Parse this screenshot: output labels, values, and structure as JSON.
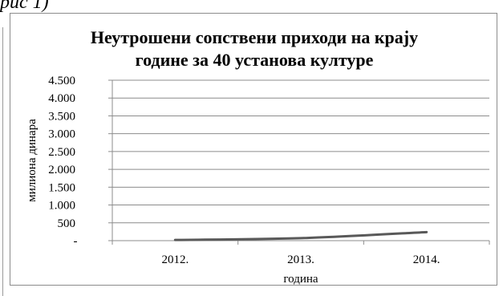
{
  "header_fragment": "рис 1)",
  "chart_data": {
    "type": "line",
    "title_lines": [
      "Неутрошени сопствени приходи на крају",
      "године за 40 установа културе"
    ],
    "xlabel": "година",
    "ylabel": "милиона динара",
    "categories": [
      "2012.",
      "2013.",
      "2014."
    ],
    "series": [
      {
        "values": [
          20,
          70,
          240
        ],
        "color": "#595959"
      }
    ],
    "ylim": [
      0,
      4500
    ],
    "yticks": [
      0,
      500,
      1000,
      1500,
      2000,
      2500,
      3000,
      3500,
      4000,
      4500
    ],
    "ytick_labels": [
      "-",
      "500",
      "1.000",
      "1.500",
      "2.000",
      "2.500",
      "3.000",
      "3.500",
      "4.000",
      "4.500"
    ],
    "grid": true,
    "legend": "none"
  }
}
